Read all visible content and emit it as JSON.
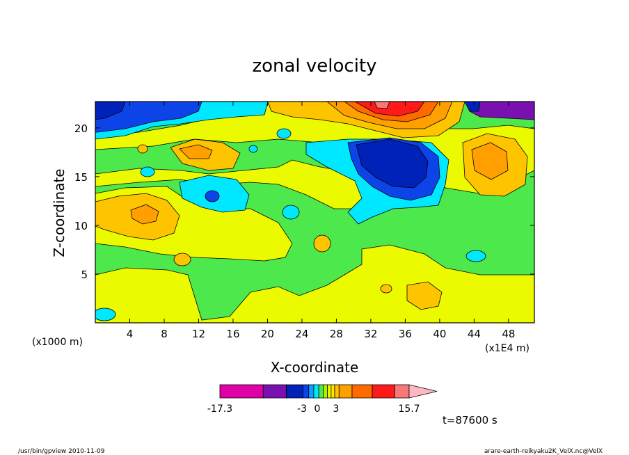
{
  "chart_data": {
    "type": "heatmap",
    "title": "zonal velocity",
    "xlabel": "X-coordinate",
    "ylabel": "Z-coordinate",
    "x_unit_left": "(x1000 m)",
    "x_unit_right": "(x1E4 m)",
    "xticks": [
      "4",
      "8",
      "12",
      "16",
      "20",
      "24",
      "28",
      "32",
      "36",
      "40",
      "44",
      "48"
    ],
    "yticks": [
      "5",
      "10",
      "15",
      "20"
    ],
    "xlim": [
      0,
      51
    ],
    "ylim": [
      0,
      22.7
    ],
    "time_label": "t=87600 s",
    "colorbar": {
      "labels": [
        "-17.3",
        "-3",
        "0",
        "3",
        "15.7"
      ],
      "colors": [
        "#e000a8",
        "#7a10b0",
        "#0022b8",
        "#0d44e8",
        "#0aa0ff",
        "#00e8ff",
        "#4ce84c",
        "#aef000",
        "#ecfa00",
        "#ffe600",
        "#ffc400",
        "#ff9f00",
        "#ff6a00",
        "#ff1a1a",
        "#f87878",
        "#ffb8c0"
      ]
    },
    "regions": [
      {
        "name": "cyan-upper-band",
        "color": "#00e8ff"
      },
      {
        "name": "blue-core-upper-right",
        "color": "#0022b8"
      },
      {
        "name": "orange-top-center",
        "color": "#ff9f00"
      },
      {
        "name": "red-top-center",
        "color": "#ff1a1a"
      },
      {
        "name": "orange-left-mid",
        "color": "#ffc400"
      },
      {
        "name": "orange-right",
        "color": "#ffc400"
      }
    ]
  },
  "footer": {
    "left": "/usr/bin/gpview   2010-11-09",
    "right": "arare-earth-reikyaku2K_VelX.nc@VelX"
  }
}
